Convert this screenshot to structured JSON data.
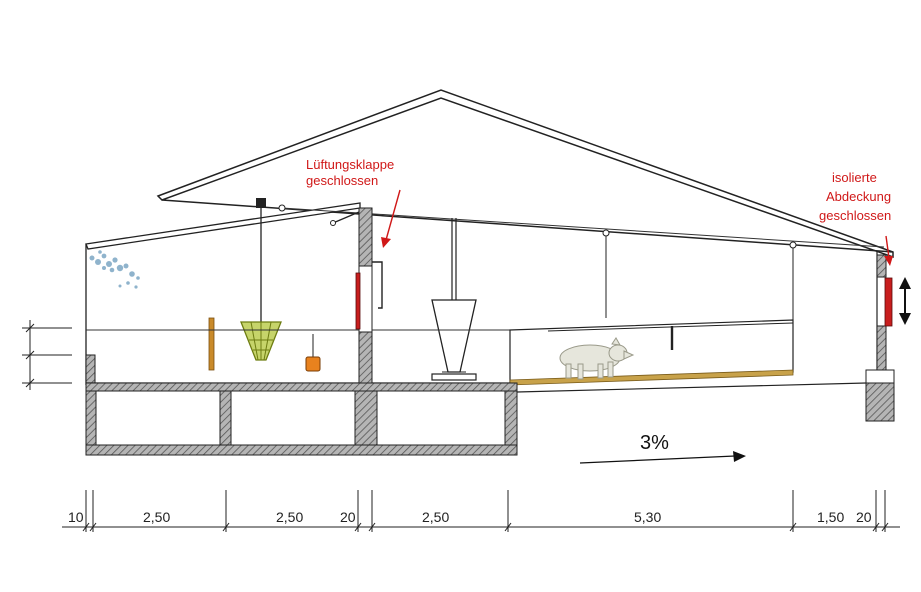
{
  "annotations": {
    "vent_flap_line1": "Lüftungsklappe",
    "vent_flap_line2": "geschlossen",
    "cover_line1": "isolierte",
    "cover_line2": "Abdeckung",
    "cover_line3": "geschlossen"
  },
  "slope_label": "3%",
  "dimensions": [
    "10",
    "2,50",
    "2,50",
    "20",
    "2,50",
    "5,30",
    "1,50",
    "20"
  ],
  "colors": {
    "annotation": "#d01818",
    "wall_hatch": "#8a8a8a",
    "wood_post": "#c98a2a",
    "orange_feeder": "#e8821e",
    "hay_rack": "#9cb02a",
    "litter_strip": "#c8a24a",
    "pig": "#e6e6dc",
    "insulation_panel": "#c81e1e",
    "dust_cloud": "#8fb3cc"
  },
  "icons": {
    "ventilation_arrow": "double-arrow-vertical",
    "slope_arrow": "arrow-right"
  }
}
